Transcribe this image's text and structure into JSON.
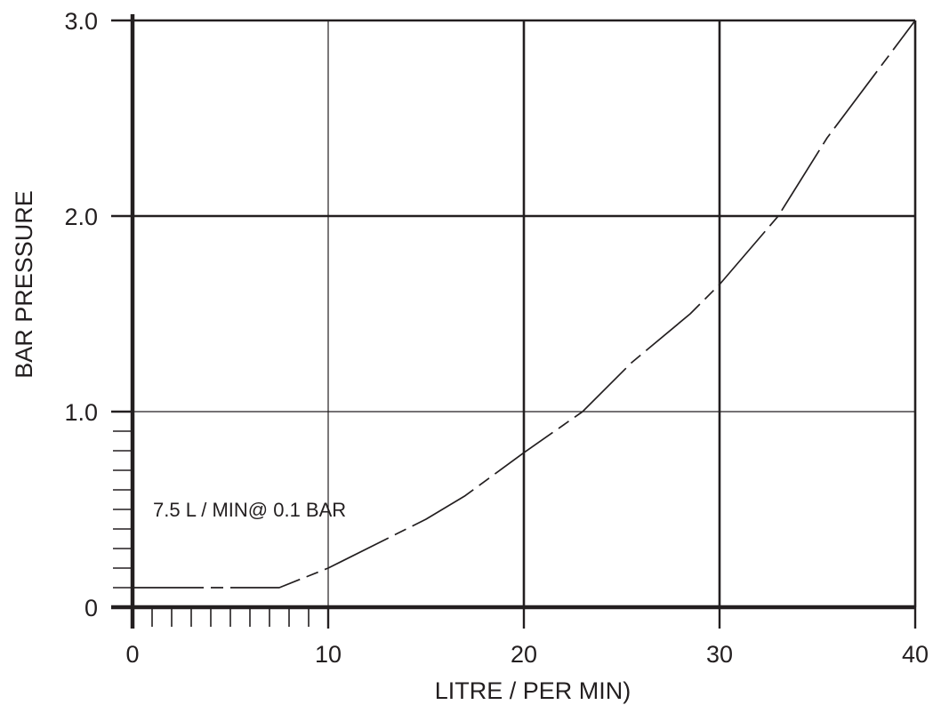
{
  "chart_data": {
    "type": "line",
    "xlabel": "LITRE / PER MIN)",
    "ylabel": "BAR PRESSURE",
    "xlim": [
      0,
      40
    ],
    "ylim": [
      0,
      3.0
    ],
    "x_ticks": [
      "0",
      "10",
      "20",
      "30",
      "40"
    ],
    "y_ticks": [
      "0",
      "1.0",
      "2.0",
      "3.0"
    ],
    "grid": true,
    "annotation": "7.5 L / MIN@ 0.1 BAR",
    "series": [
      {
        "x": [
          0,
          7.5,
          10,
          15,
          17,
          20,
          23,
          25.5,
          28.5,
          30,
          33,
          35.5,
          40
        ],
        "y": [
          0.1,
          0.1,
          0.2,
          0.45,
          0.57,
          0.79,
          1.0,
          1.25,
          1.5,
          1.65,
          2.0,
          2.4,
          3.0
        ]
      }
    ]
  }
}
